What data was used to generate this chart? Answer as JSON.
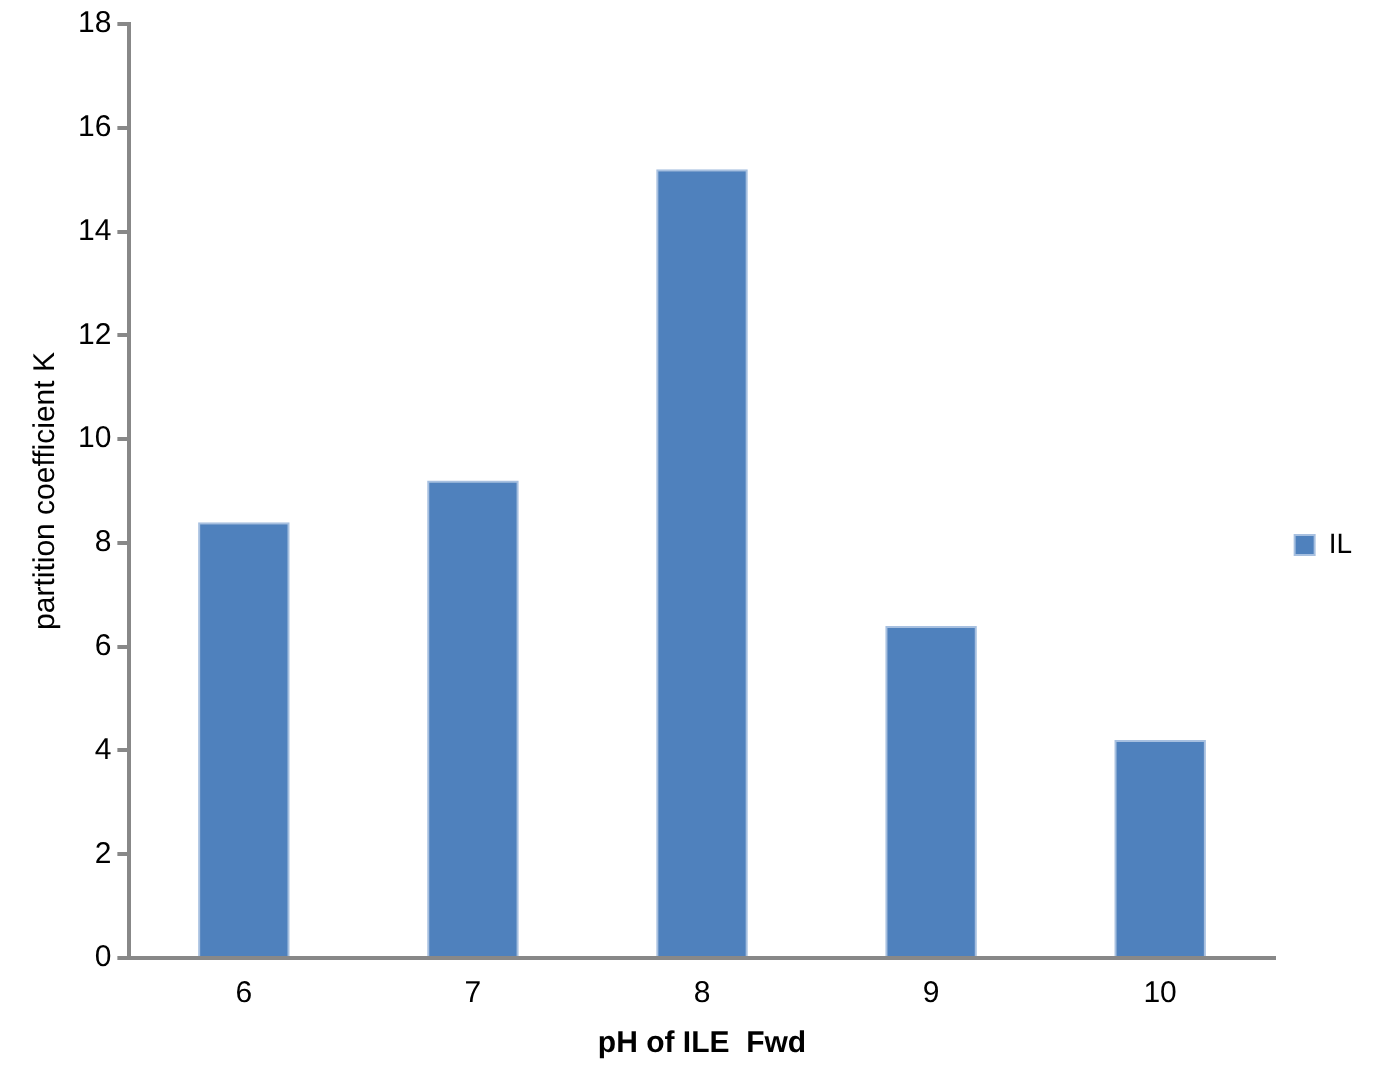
{
  "chart_data": {
    "type": "bar",
    "xlabel": "pH of ILE  Fwd",
    "ylabel": "partition coefficient K",
    "categories": [
      "6",
      "7",
      "8",
      "9",
      "10"
    ],
    "series": [
      {
        "name": "IL",
        "color": "#4f81bd",
        "values": [
          8.4,
          9.2,
          15.2,
          6.4,
          4.2
        ]
      }
    ],
    "ylim": [
      0,
      18
    ],
    "yticks": [
      0,
      2,
      4,
      6,
      8,
      10,
      12,
      14,
      16,
      18
    ],
    "grid": false,
    "legend": "right"
  }
}
